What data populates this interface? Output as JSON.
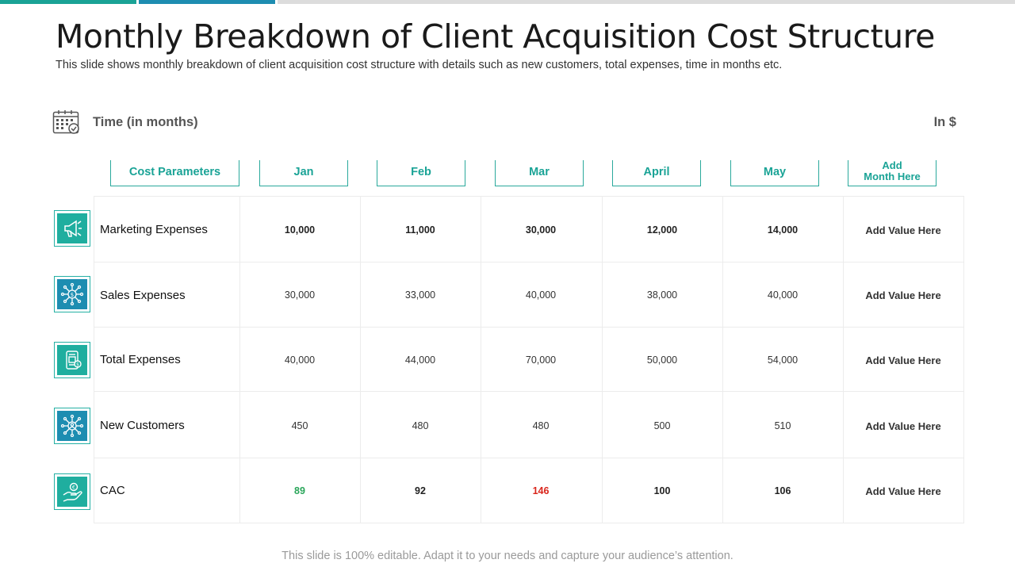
{
  "colors": {
    "accent_green": "#1aa396",
    "accent_blue": "#1d8db1",
    "bar_gray": "#dcdcdc",
    "cac_low": "#2aa65a",
    "cac_high": "#d9261c"
  },
  "slide": {
    "title": "Monthly Breakdown of Client Acquisition Cost Structure",
    "subtitle": "This slide shows monthly breakdown of client acquisition cost structure with details such as new customers, total expenses, time in months etc.",
    "time_label": "Time (in months)",
    "time_icon": "calendar-check-icon",
    "unit_label": "In $",
    "footer": "This slide is 100% editable. Adapt it to your needs and capture your audience’s attention."
  },
  "table": {
    "headers": [
      "Cost Parameters",
      "Jan",
      "Feb",
      "Mar",
      "April",
      "May",
      "Add\nMonth Here"
    ],
    "rows": [
      {
        "label": "Marketing Expenses",
        "icon": "megaphone-icon",
        "values": [
          "10,000",
          "11,000",
          "30,000",
          "12,000",
          "14,000",
          "Add Value Here"
        ]
      },
      {
        "label": "Sales Expenses",
        "icon": "dollar-network-icon",
        "values": [
          "30,000",
          "33,000",
          "40,000",
          "38,000",
          "40,000",
          "Add Value Here"
        ]
      },
      {
        "label": "Total Expenses",
        "icon": "expense-document-icon",
        "values": [
          "40,000",
          "44,000",
          "70,000",
          "50,000",
          "54,000",
          "Add Value Here"
        ]
      },
      {
        "label": "New Customers",
        "icon": "customer-network-icon",
        "values": [
          "450",
          "480",
          "480",
          "500",
          "510",
          "Add Value Here"
        ]
      },
      {
        "label": "CAC",
        "icon": "hand-coin-icon",
        "values": [
          "89",
          "92",
          "146",
          "100",
          "106",
          "Add Value Here"
        ]
      }
    ]
  }
}
